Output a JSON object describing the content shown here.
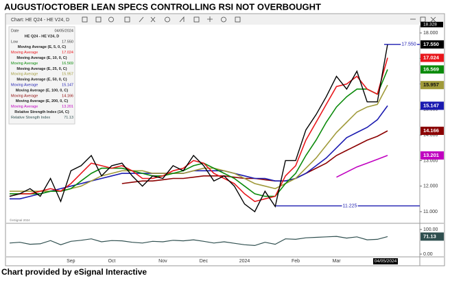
{
  "page_title": "AUGUST/OCTOBER LEAN  SPECS CONTROLLING  RSI NOT OVERBOUGHT",
  "footer": "Chart provided by eSignal Interactive",
  "window_title": "Chart: HE Q24 - HE V24, D",
  "watermark": "©eSignal 2024",
  "panel": {
    "date_label": "Date",
    "date": "04/05/2024",
    "low_label": "Low",
    "ma_label": "Moving Average",
    "rsi_label": "Relative Strength Index"
  },
  "chart_data": {
    "type": "line",
    "categories": [
      null,
      null,
      null,
      null,
      null,
      null,
      "Sep",
      null,
      null,
      null,
      "Oct",
      null,
      null,
      null,
      null,
      "Nov",
      null,
      null,
      null,
      "Dec",
      null,
      null,
      null,
      "2024",
      null,
      null,
      null,
      null,
      "Feb",
      null,
      null,
      null,
      "Mar",
      null,
      null,
      null,
      null,
      null
    ],
    "ylim": [
      10.57,
      18.27
    ],
    "yticks": [
      {
        "value": 11,
        "label": "11.000"
      },
      {
        "value": 12,
        "label": "12.000"
      },
      {
        "value": 13,
        "label": "13.000"
      },
      {
        "value": 14,
        "label": "14.000"
      },
      {
        "value": 15,
        "label": "15.000"
      },
      {
        "value": 16,
        "label": "16.000"
      },
      {
        "value": 17,
        "label": "17.000"
      },
      {
        "value": 18,
        "label": "18.000"
      }
    ],
    "levels": [
      {
        "value": 17.55,
        "label": "17.550"
      },
      {
        "value": 11.225,
        "label": "11.225"
      },
      {
        "value": 18.328,
        "label": "18.328"
      }
    ],
    "series": [
      {
        "name": "HE Q24 - HE V24, D",
        "color": "#000000",
        "last_label": "17.550",
        "values": [
          11.6,
          11.7,
          11.9,
          11.6,
          12.3,
          11.4,
          12.6,
          12.8,
          13.2,
          12.4,
          12.8,
          12.9,
          12.4,
          12.0,
          12.4,
          12.3,
          12.8,
          12.6,
          13.2,
          12.8,
          12.2,
          12.4,
          12.0,
          11.3,
          11.0,
          11.8,
          11.2,
          13.0,
          13.0,
          14.2,
          14.8,
          15.5,
          16.3,
          15.8,
          16.5,
          15.3,
          15.3,
          17.55
        ]
      },
      {
        "name": "Moving Average (E, 5, 0, C)",
        "color": "#e8161b",
        "last_label": "17.024",
        "values": [
          11.6,
          11.7,
          11.7,
          11.8,
          11.9,
          11.8,
          12.1,
          12.5,
          12.9,
          12.8,
          12.7,
          12.8,
          12.6,
          12.3,
          12.3,
          12.4,
          12.6,
          12.7,
          13.0,
          12.9,
          12.5,
          12.3,
          12.1,
          11.7,
          11.4,
          11.5,
          11.6,
          12.4,
          12.8,
          13.8,
          14.5,
          15.2,
          15.9,
          16.0,
          16.3,
          15.8,
          15.6,
          17.024
        ]
      },
      {
        "name": "Moving Average (E, 10, 0, C)",
        "color": "#0a8a0a",
        "last_label": "16.569",
        "values": [
          11.7,
          11.7,
          11.7,
          11.7,
          11.8,
          11.8,
          11.9,
          12.2,
          12.5,
          12.7,
          12.7,
          12.7,
          12.6,
          12.5,
          12.4,
          12.4,
          12.5,
          12.6,
          12.8,
          12.9,
          12.7,
          12.5,
          12.3,
          12.0,
          11.7,
          11.6,
          11.6,
          12.1,
          12.5,
          13.2,
          13.8,
          14.5,
          15.1,
          15.5,
          15.8,
          15.8,
          15.6,
          16.569
        ]
      },
      {
        "name": "Moving Average (E, 25, 0, C)",
        "color": "#a09a3a",
        "last_label": "15.957",
        "values": [
          11.8,
          11.8,
          11.8,
          11.8,
          11.8,
          11.8,
          11.9,
          12.0,
          12.2,
          12.4,
          12.5,
          12.6,
          12.6,
          12.6,
          12.5,
          12.5,
          12.5,
          12.5,
          12.6,
          12.7,
          12.7,
          12.6,
          12.5,
          12.3,
          12.1,
          12.0,
          11.9,
          12.1,
          12.3,
          12.7,
          13.1,
          13.6,
          14.1,
          14.5,
          14.9,
          15.1,
          15.2,
          15.957
        ]
      },
      {
        "name": "Moving Average (E, 50, 0, C)",
        "color": "#1a1ab0",
        "last_label": "15.147",
        "values": [
          11.5,
          11.5,
          11.6,
          11.7,
          11.8,
          11.9,
          12.0,
          12.1,
          12.2,
          12.3,
          12.4,
          12.5,
          12.5,
          12.5,
          12.5,
          12.5,
          12.5,
          12.5,
          12.6,
          12.6,
          12.6,
          12.6,
          12.5,
          12.4,
          12.3,
          12.3,
          12.2,
          12.2,
          12.3,
          12.5,
          12.8,
          13.1,
          13.5,
          13.9,
          14.1,
          14.3,
          14.6,
          15.147
        ]
      },
      {
        "name": "Moving Average (E, 100, 0, C)",
        "color": "#8b0000",
        "last_label": "14.166",
        "values": [
          null,
          null,
          null,
          null,
          null,
          null,
          null,
          null,
          null,
          null,
          null,
          12.1,
          12.15,
          12.2,
          12.2,
          12.25,
          12.3,
          12.3,
          12.35,
          12.4,
          12.4,
          12.4,
          12.35,
          12.3,
          12.3,
          12.25,
          12.2,
          12.2,
          12.3,
          12.5,
          12.7,
          12.9,
          13.2,
          13.4,
          13.6,
          13.8,
          13.95,
          14.166
        ]
      },
      {
        "name": "Moving Average (E, 200, 0, C)",
        "color": "#c000c0",
        "last_label": "13.201",
        "values": [
          null,
          null,
          null,
          null,
          null,
          null,
          null,
          null,
          null,
          null,
          null,
          null,
          null,
          null,
          null,
          null,
          null,
          null,
          null,
          null,
          null,
          null,
          null,
          null,
          null,
          null,
          null,
          null,
          null,
          null,
          null,
          null,
          12.35,
          12.55,
          12.75,
          12.9,
          13.05,
          13.201
        ]
      }
    ],
    "rsi": {
      "name": "Relative Strength Index (14, C)",
      "color": "#2f4f4f",
      "ylim": [
        0,
        100
      ],
      "yticks": [
        {
          "value": 100,
          "label": "100.00"
        },
        {
          "value": 0,
          "label": "0.00"
        }
      ],
      "values": [
        45,
        48,
        40,
        42,
        55,
        38,
        52,
        56,
        62,
        50,
        55,
        54,
        48,
        45,
        52,
        50,
        56,
        54,
        58,
        52,
        45,
        50,
        44,
        38,
        35,
        48,
        40,
        62,
        60,
        66,
        68,
        70,
        72,
        65,
        70,
        58,
        60,
        71.13
      ]
    }
  }
}
